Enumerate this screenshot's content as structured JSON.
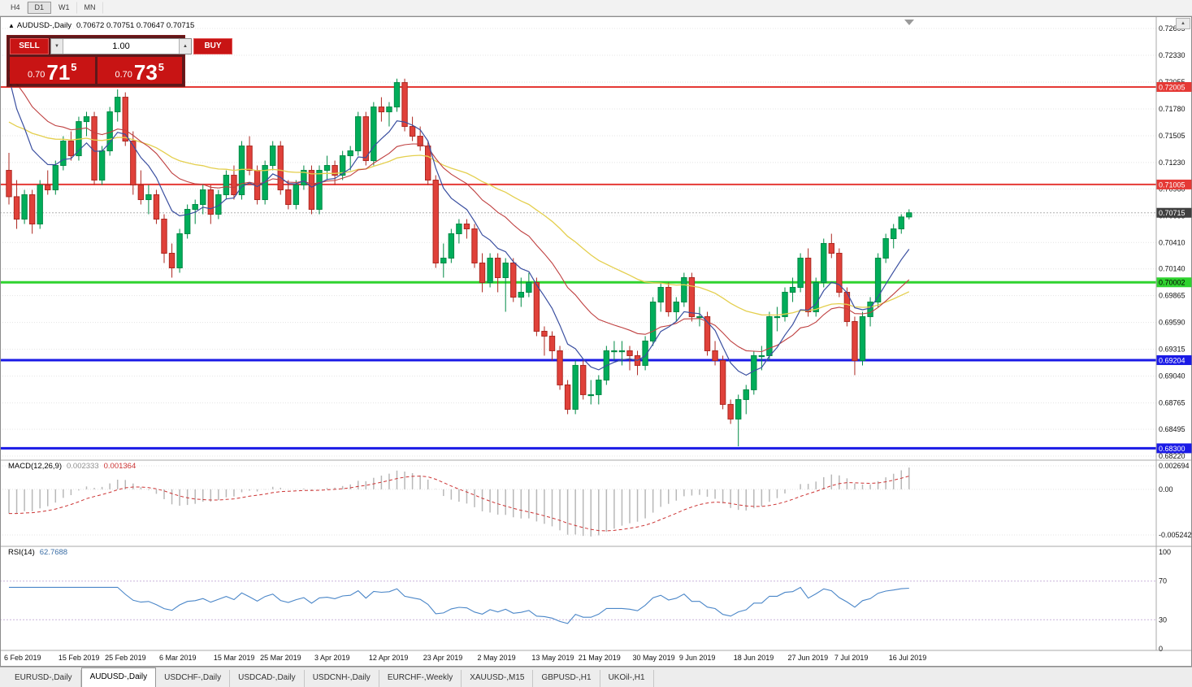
{
  "toolbar": {
    "periods": [
      "H4",
      "D1",
      "W1",
      "MN"
    ],
    "active_period": "D1"
  },
  "chart_window": {
    "marker": "▲",
    "symbol_title": "AUDUSD-,Daily",
    "ohlc_line": "0.70672 0.70751 0.70647 0.70715"
  },
  "trade_panel": {
    "sell_label": "SELL",
    "buy_label": "BUY",
    "volume_value": "1.00",
    "spin_up_glyph": "▲",
    "spin_down_glyph": "▼",
    "sell_price": {
      "prefix": "0.70",
      "big": "71",
      "sup": "5"
    },
    "buy_price": {
      "prefix": "0.70",
      "big": "73",
      "sup": "5"
    }
  },
  "price_axis": {
    "max": 0.72605,
    "min": 0.6822,
    "labels": [
      "0.72605",
      "0.72330",
      "0.72055",
      "0.71780",
      "0.71505",
      "0.71230",
      "0.70960",
      "0.70685",
      "0.70410",
      "0.70140",
      "0.69865",
      "0.69590",
      "0.69315",
      "0.69040",
      "0.68765",
      "0.68495",
      "0.68220"
    ]
  },
  "hlines": [
    {
      "price": 0.72005,
      "label": "0.72005",
      "color": "#e53935",
      "width": 2,
      "text_color": "#ffffff"
    },
    {
      "price": 0.71005,
      "label": "0.71005",
      "color": "#e53935",
      "width": 2,
      "text_color": "#ffffff"
    },
    {
      "price": 0.70002,
      "label": "0.70002",
      "color": "#2fd32f",
      "width": 3,
      "text_color": "#000000"
    },
    {
      "price": 0.69204,
      "label": "0.69204",
      "color": "#1a1ae6",
      "width": 3,
      "text_color": "#ffffff"
    },
    {
      "price": 0.683,
      "label": "0.68300",
      "color": "#1a1ae6",
      "width": 3,
      "text_color": "#ffffff"
    }
  ],
  "current_price": {
    "value": 0.70715,
    "label": "0.70715"
  },
  "indicators": {
    "macd": {
      "label": "MACD(12,26,9)",
      "value_main": "0.002333",
      "value_signal": "0.001364",
      "axis_labels": [
        "0.002694",
        "0.00",
        "-0.005242"
      ],
      "range": {
        "max": 0.002694,
        "min": -0.005242
      }
    },
    "rsi": {
      "label": "RSI(14)",
      "value": "62.7688",
      "axis_labels": [
        "100",
        "70",
        "30",
        "0"
      ],
      "levels": [
        70,
        30
      ]
    }
  },
  "chart_data": {
    "type": "candlestick",
    "symbol": "AUDUSD",
    "timeframe": "Daily",
    "x_labels": [
      {
        "i": 0,
        "t": "6 Feb 2019"
      },
      {
        "i": 7,
        "t": "15 Feb 2019"
      },
      {
        "i": 13,
        "t": "25 Feb 2019"
      },
      {
        "i": 20,
        "t": "6 Mar 2019"
      },
      {
        "i": 27,
        "t": "15 Mar 2019"
      },
      {
        "i": 33,
        "t": "25 Mar 2019"
      },
      {
        "i": 40,
        "t": "3 Apr 2019"
      },
      {
        "i": 47,
        "t": "12 Apr 2019"
      },
      {
        "i": 54,
        "t": "23 Apr 2019"
      },
      {
        "i": 61,
        "t": "2 May 2019"
      },
      {
        "i": 68,
        "t": "13 May 2019"
      },
      {
        "i": 74,
        "t": "21 May 2019"
      },
      {
        "i": 81,
        "t": "30 May 2019"
      },
      {
        "i": 87,
        "t": "9 Jun 2019"
      },
      {
        "i": 94,
        "t": "18 Jun 2019"
      },
      {
        "i": 101,
        "t": "27 Jun 2019"
      },
      {
        "i": 107,
        "t": "7 Jul 2019"
      },
      {
        "i": 114,
        "t": "16 Jul 2019"
      }
    ],
    "candles": [
      [
        0.7115,
        0.7133,
        0.708,
        0.7088
      ],
      [
        0.7088,
        0.7105,
        0.7055,
        0.7065
      ],
      [
        0.7065,
        0.7095,
        0.706,
        0.709
      ],
      [
        0.709,
        0.7095,
        0.705,
        0.706
      ],
      [
        0.706,
        0.7105,
        0.7055,
        0.71
      ],
      [
        0.71,
        0.7115,
        0.709,
        0.7095
      ],
      [
        0.7095,
        0.7125,
        0.709,
        0.712
      ],
      [
        0.712,
        0.715,
        0.7115,
        0.7145
      ],
      [
        0.7145,
        0.7155,
        0.7125,
        0.713
      ],
      [
        0.713,
        0.717,
        0.7125,
        0.7165
      ],
      [
        0.7165,
        0.7175,
        0.715,
        0.717
      ],
      [
        0.717,
        0.7175,
        0.71,
        0.7105
      ],
      [
        0.7105,
        0.714,
        0.71,
        0.7135
      ],
      [
        0.7135,
        0.718,
        0.713,
        0.7175
      ],
      [
        0.7175,
        0.7198,
        0.7165,
        0.719
      ],
      [
        0.719,
        0.7195,
        0.714,
        0.7145
      ],
      [
        0.7145,
        0.7155,
        0.709,
        0.71
      ],
      [
        0.71,
        0.7115,
        0.708,
        0.7085
      ],
      [
        0.7085,
        0.71,
        0.707,
        0.709
      ],
      [
        0.709,
        0.7095,
        0.706,
        0.7065
      ],
      [
        0.7065,
        0.707,
        0.702,
        0.703
      ],
      [
        0.703,
        0.704,
        0.7005,
        0.7015
      ],
      [
        0.7015,
        0.7055,
        0.701,
        0.705
      ],
      [
        0.705,
        0.708,
        0.7045,
        0.7075
      ],
      [
        0.7075,
        0.7085,
        0.706,
        0.708
      ],
      [
        0.708,
        0.71,
        0.707,
        0.7095
      ],
      [
        0.7095,
        0.71,
        0.706,
        0.707
      ],
      [
        0.707,
        0.7095,
        0.7065,
        0.709
      ],
      [
        0.709,
        0.7115,
        0.7085,
        0.711
      ],
      [
        0.711,
        0.712,
        0.7085,
        0.709
      ],
      [
        0.709,
        0.7145,
        0.7085,
        0.714
      ],
      [
        0.714,
        0.715,
        0.711,
        0.7115
      ],
      [
        0.7115,
        0.712,
        0.708,
        0.7085
      ],
      [
        0.7085,
        0.7125,
        0.708,
        0.712
      ],
      [
        0.712,
        0.7145,
        0.7115,
        0.714
      ],
      [
        0.714,
        0.7145,
        0.709,
        0.7095
      ],
      [
        0.7095,
        0.7105,
        0.7075,
        0.708
      ],
      [
        0.708,
        0.7105,
        0.7075,
        0.71
      ],
      [
        0.71,
        0.712,
        0.7095,
        0.7115
      ],
      [
        0.7115,
        0.712,
        0.707,
        0.7075
      ],
      [
        0.7075,
        0.712,
        0.707,
        0.7115
      ],
      [
        0.7115,
        0.713,
        0.7105,
        0.712
      ],
      [
        0.712,
        0.7125,
        0.71,
        0.711
      ],
      [
        0.711,
        0.7135,
        0.7105,
        0.713
      ],
      [
        0.713,
        0.714,
        0.7115,
        0.7135
      ],
      [
        0.7135,
        0.7175,
        0.713,
        0.717
      ],
      [
        0.717,
        0.7175,
        0.712,
        0.7125
      ],
      [
        0.7125,
        0.7185,
        0.712,
        0.718
      ],
      [
        0.718,
        0.719,
        0.7165,
        0.7175
      ],
      [
        0.7175,
        0.7185,
        0.716,
        0.718
      ],
      [
        0.718,
        0.7209,
        0.7175,
        0.7205
      ],
      [
        0.7205,
        0.7209,
        0.7155,
        0.716
      ],
      [
        0.716,
        0.717,
        0.7145,
        0.715
      ],
      [
        0.715,
        0.716,
        0.7135,
        0.714
      ],
      [
        0.714,
        0.7145,
        0.71,
        0.7105
      ],
      [
        0.7105,
        0.711,
        0.7015,
        0.702
      ],
      [
        0.702,
        0.704,
        0.7005,
        0.7025
      ],
      [
        0.7025,
        0.7055,
        0.702,
        0.705
      ],
      [
        0.705,
        0.7065,
        0.704,
        0.706
      ],
      [
        0.706,
        0.7065,
        0.7045,
        0.7055
      ],
      [
        0.7055,
        0.706,
        0.7015,
        0.702
      ],
      [
        0.702,
        0.703,
        0.699,
        0.7
      ],
      [
        0.7,
        0.703,
        0.6995,
        0.7025
      ],
      [
        0.7025,
        0.703,
        0.699,
        0.7005
      ],
      [
        0.7005,
        0.7025,
        0.697,
        0.702
      ],
      [
        0.702,
        0.7025,
        0.698,
        0.6985
      ],
      [
        0.6985,
        0.7005,
        0.6975,
        0.699
      ],
      [
        0.699,
        0.701,
        0.6985,
        0.7
      ],
      [
        0.7,
        0.7005,
        0.6945,
        0.695
      ],
      [
        0.695,
        0.6955,
        0.6925,
        0.6945
      ],
      [
        0.6945,
        0.695,
        0.692,
        0.693
      ],
      [
        0.693,
        0.6935,
        0.689,
        0.6895
      ],
      [
        0.6895,
        0.69,
        0.6865,
        0.687
      ],
      [
        0.687,
        0.692,
        0.6865,
        0.6915
      ],
      [
        0.6915,
        0.692,
        0.688,
        0.6885
      ],
      [
        0.6885,
        0.69,
        0.6875,
        0.6885
      ],
      [
        0.6885,
        0.6905,
        0.6875,
        0.69
      ],
      [
        0.69,
        0.6935,
        0.6895,
        0.693
      ],
      [
        0.693,
        0.694,
        0.692,
        0.693
      ],
      [
        0.693,
        0.694,
        0.6915,
        0.693
      ],
      [
        0.693,
        0.6935,
        0.691,
        0.6925
      ],
      [
        0.6925,
        0.693,
        0.6905,
        0.6915
      ],
      [
        0.6915,
        0.6945,
        0.691,
        0.694
      ],
      [
        0.694,
        0.6985,
        0.6935,
        0.698
      ],
      [
        0.698,
        0.7,
        0.697,
        0.6995
      ],
      [
        0.6995,
        0.7,
        0.6965,
        0.697
      ],
      [
        0.697,
        0.6985,
        0.696,
        0.698
      ],
      [
        0.698,
        0.701,
        0.6975,
        0.7005
      ],
      [
        0.7005,
        0.701,
        0.696,
        0.6965
      ],
      [
        0.6965,
        0.6975,
        0.6955,
        0.6965
      ],
      [
        0.6965,
        0.697,
        0.6925,
        0.693
      ],
      [
        0.693,
        0.694,
        0.6915,
        0.692
      ],
      [
        0.692,
        0.6925,
        0.687,
        0.6875
      ],
      [
        0.6875,
        0.688,
        0.6855,
        0.686
      ],
      [
        0.686,
        0.6885,
        0.6832,
        0.688
      ],
      [
        0.688,
        0.6895,
        0.6865,
        0.689
      ],
      [
        0.689,
        0.693,
        0.6885,
        0.6925
      ],
      [
        0.6925,
        0.6935,
        0.691,
        0.6925
      ],
      [
        0.6925,
        0.697,
        0.692,
        0.6965
      ],
      [
        0.6965,
        0.6975,
        0.695,
        0.6965
      ],
      [
        0.6965,
        0.6995,
        0.696,
        0.699
      ],
      [
        0.699,
        0.7005,
        0.698,
        0.6995
      ],
      [
        0.6995,
        0.703,
        0.699,
        0.7025
      ],
      [
        0.7025,
        0.7035,
        0.6965,
        0.697
      ],
      [
        0.697,
        0.7005,
        0.6965,
        0.7
      ],
      [
        0.7,
        0.7045,
        0.6995,
        0.704
      ],
      [
        0.704,
        0.705,
        0.7025,
        0.703
      ],
      [
        0.703,
        0.7035,
        0.6985,
        0.699
      ],
      [
        0.699,
        0.6995,
        0.6955,
        0.696
      ],
      [
        0.696,
        0.6965,
        0.6905,
        0.692
      ],
      [
        0.692,
        0.697,
        0.6915,
        0.6965
      ],
      [
        0.6965,
        0.6985,
        0.6955,
        0.698
      ],
      [
        0.698,
        0.703,
        0.6975,
        0.7025
      ],
      [
        0.7025,
        0.705,
        0.702,
        0.7045
      ],
      [
        0.7045,
        0.706,
        0.7035,
        0.7055
      ],
      [
        0.7055,
        0.707,
        0.705,
        0.70672
      ],
      [
        0.70672,
        0.70751,
        0.70647,
        0.70715
      ]
    ]
  },
  "bottom_tabs": {
    "items": [
      {
        "label": "EURUSD-,Daily",
        "active": false
      },
      {
        "label": "AUDUSD-,Daily",
        "active": true
      },
      {
        "label": "USDCHF-,Daily",
        "active": false
      },
      {
        "label": "USDCAD-,Daily",
        "active": false
      },
      {
        "label": "USDCNH-,Daily",
        "active": false
      },
      {
        "label": "EURCHF-,Weekly",
        "active": false
      },
      {
        "label": "XAUUSD-,M15",
        "active": false
      },
      {
        "label": "GBPUSD-,H1",
        "active": false
      },
      {
        "label": "UKOil-,H1",
        "active": false
      }
    ]
  },
  "misc": {
    "scroll_up_glyph": "▲"
  },
  "colors": {
    "candle_up": "#00ad5a",
    "candle_up_border": "#008a45",
    "candle_down": "#e0413a",
    "candle_down_border": "#ad2821",
    "ma_fast_blue": "#3a4fa0",
    "ma_mid_red": "#bf4040",
    "ma_slow_yellow": "#e4cf4e",
    "macd_hist": "#b8b8b8",
    "macd_signal": "#cc3333",
    "rsi_line": "#4a86c8",
    "rsi_levels": "#c9b4da",
    "grid": "#e4e4e4",
    "separator": "#a8a8a8",
    "current_price_tag": "#3f3f3f",
    "current_price_line": "#b0b0b0",
    "axis_text": "#111111"
  }
}
